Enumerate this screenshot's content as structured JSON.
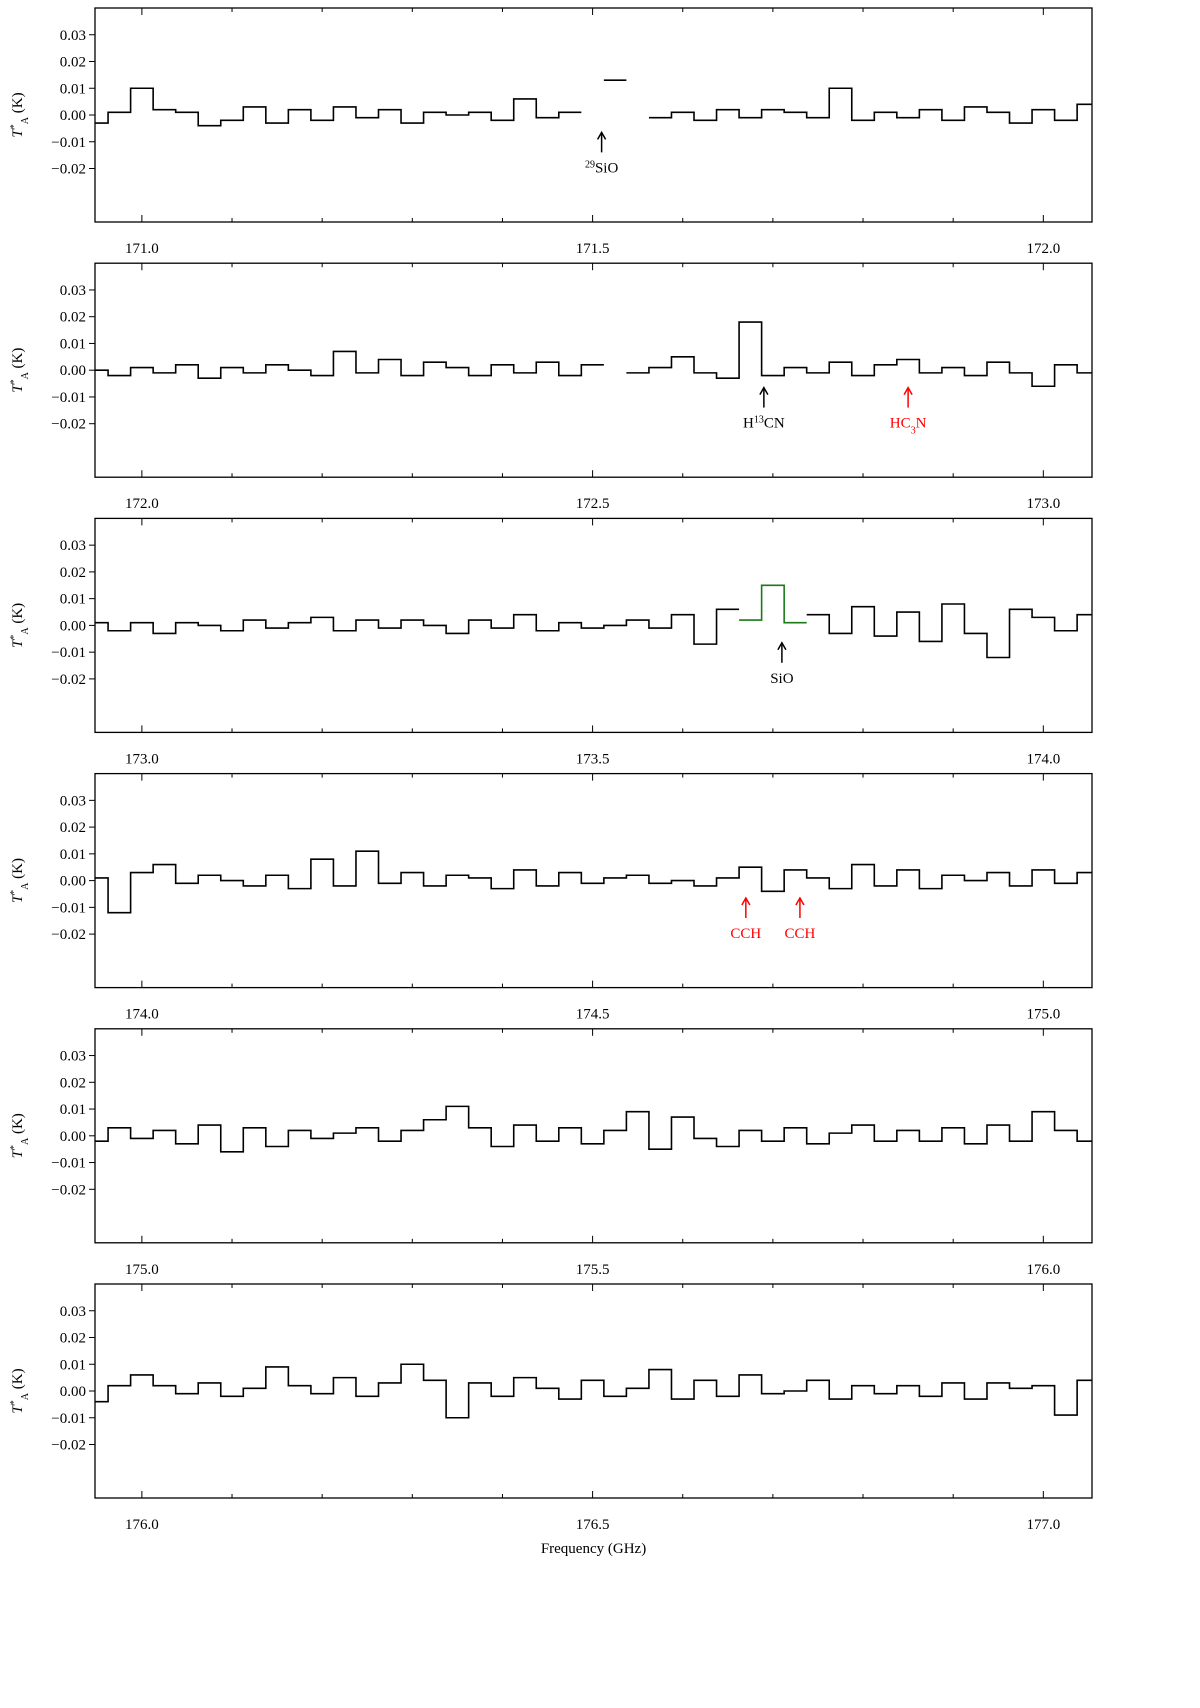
{
  "chart_data": [
    {
      "type": "line",
      "xlim": [
        170.948,
        172.054
      ],
      "ylim": [
        -0.04,
        0.04
      ],
      "x": [
        170.95,
        170.975,
        171.0,
        171.025,
        171.05,
        171.075,
        171.1,
        171.125,
        171.15,
        171.175,
        171.2,
        171.225,
        171.25,
        171.275,
        171.3,
        171.325,
        171.35,
        171.375,
        171.4,
        171.425,
        171.45,
        171.475,
        171.5,
        171.525,
        171.55,
        171.575,
        171.6,
        171.625,
        171.65,
        171.675,
        171.7,
        171.725,
        171.75,
        171.775,
        171.8,
        171.825,
        171.85,
        171.875,
        171.9,
        171.925,
        171.95,
        171.975,
        172.0,
        172.025,
        172.05
      ],
      "series": [
        {
          "color": "#000000",
          "values": [
            -0.003,
            0.001,
            0.01,
            0.002,
            0.001,
            -0.004,
            -0.002,
            0.003,
            -0.003,
            0.002,
            -0.002,
            0.003,
            -0.001,
            0.002,
            -0.003,
            0.001,
            0.0,
            0.001,
            -0.002,
            0.006,
            -0.001,
            0.001,
            null,
            0.013,
            null,
            -0.001,
            0.001,
            -0.002,
            0.002,
            -0.001,
            0.002,
            0.001,
            -0.001,
            0.01,
            -0.002,
            0.001,
            -0.001,
            0.002,
            -0.002,
            0.003,
            0.001,
            -0.003,
            0.002,
            -0.002,
            0.004
          ]
        }
      ],
      "yticks": [
        {
          "value": -0.02,
          "label": "−0.02"
        },
        {
          "value": -0.01,
          "label": "−0.01"
        },
        {
          "value": 0,
          "label": "0.00"
        },
        0.01,
        0.02,
        0.03
      ],
      "xticks": [
        {
          "value": 171,
          "label": "171.0"
        },
        171.5,
        {
          "value": 172,
          "label": "172.0"
        }
      ],
      "xminorticks": [
        171.1,
        171.2,
        171.3,
        171.4,
        171.6,
        171.7,
        171.8,
        171.9
      ],
      "ylabel": [
        {
          "text": "T",
          "style": "italic"
        },
        {
          "text": "*",
          "shift": "super"
        },
        {
          "text": "A",
          "shift": "sub"
        },
        {
          "text": " (K)"
        }
      ],
      "annotations": [
        {
          "x": 171.51,
          "y": -0.005,
          "color": "#000000",
          "parts": [
            {
              "text": "29",
              "shift": "super"
            },
            {
              "text": "SiO"
            }
          ]
        }
      ]
    },
    {
      "type": "line",
      "xlim": [
        171.948,
        173.054
      ],
      "ylim": [
        -0.04,
        0.04
      ],
      "x": [
        171.95,
        171.975,
        172.0,
        172.025,
        172.05,
        172.075,
        172.1,
        172.125,
        172.15,
        172.175,
        172.2,
        172.225,
        172.25,
        172.275,
        172.3,
        172.325,
        172.35,
        172.375,
        172.4,
        172.425,
        172.45,
        172.475,
        172.5,
        172.525,
        172.55,
        172.575,
        172.6,
        172.625,
        172.65,
        172.675,
        172.7,
        172.725,
        172.75,
        172.775,
        172.8,
        172.825,
        172.85,
        172.875,
        172.9,
        172.925,
        172.95,
        172.975,
        173.0,
        173.025,
        173.05
      ],
      "series": [
        {
          "color": "#000000",
          "values": [
            0.0,
            -0.002,
            0.001,
            -0.001,
            0.002,
            -0.003,
            0.001,
            -0.001,
            0.002,
            0.0,
            -0.002,
            0.007,
            -0.001,
            0.004,
            -0.002,
            0.003,
            0.001,
            -0.002,
            0.002,
            -0.001,
            0.003,
            -0.002,
            0.002,
            null,
            -0.001,
            0.001,
            0.005,
            -0.001,
            -0.003,
            0.018,
            -0.002,
            0.001,
            -0.001,
            0.003,
            -0.002,
            0.002,
            0.004,
            -0.001,
            0.001,
            -0.002,
            0.003,
            -0.001,
            -0.006,
            0.002,
            -0.001
          ]
        }
      ],
      "yticks": [
        {
          "value": -0.02,
          "label": "−0.02"
        },
        {
          "value": -0.01,
          "label": "−0.01"
        },
        {
          "value": 0,
          "label": "0.00"
        },
        0.01,
        0.02,
        0.03
      ],
      "xticks": [
        {
          "value": 172,
          "label": "172.0"
        },
        172.5,
        {
          "value": 173,
          "label": "173.0"
        }
      ],
      "xminorticks": [
        172.1,
        172.2,
        172.3,
        172.4,
        172.6,
        172.7,
        172.8,
        172.9
      ],
      "ylabel": [
        {
          "text": "T",
          "style": "italic"
        },
        {
          "text": "*",
          "shift": "super"
        },
        {
          "text": "A",
          "shift": "sub"
        },
        {
          "text": " (K)"
        }
      ],
      "annotations": [
        {
          "x": 172.69,
          "y": -0.005,
          "color": "#000000",
          "parts": [
            {
              "text": "H"
            },
            {
              "text": "13",
              "shift": "super"
            },
            {
              "text": "CN"
            }
          ]
        },
        {
          "x": 172.85,
          "y": -0.005,
          "color": "#ff0000",
          "parts": [
            {
              "text": "HC"
            },
            {
              "text": "3",
              "shift": "sub"
            },
            {
              "text": "N"
            }
          ]
        }
      ]
    },
    {
      "type": "line",
      "xlim": [
        172.948,
        174.054
      ],
      "ylim": [
        -0.04,
        0.04
      ],
      "x": [
        172.95,
        172.975,
        173.0,
        173.025,
        173.05,
        173.075,
        173.1,
        173.125,
        173.15,
        173.175,
        173.2,
        173.225,
        173.25,
        173.275,
        173.3,
        173.325,
        173.35,
        173.375,
        173.4,
        173.425,
        173.45,
        173.475,
        173.5,
        173.525,
        173.55,
        173.575,
        173.6,
        173.625,
        173.65,
        173.675,
        173.7,
        173.725,
        173.75,
        173.775,
        173.8,
        173.825,
        173.85,
        173.875,
        173.9,
        173.925,
        173.95,
        173.975,
        174.0,
        174.025,
        174.05
      ],
      "series": [
        {
          "color": "#000000",
          "values": [
            0.001,
            -0.002,
            0.001,
            -0.003,
            0.001,
            0.0,
            -0.002,
            0.002,
            -0.001,
            0.001,
            0.003,
            -0.002,
            0.002,
            -0.001,
            0.002,
            0.0,
            -0.003,
            0.002,
            -0.001,
            0.004,
            -0.002,
            0.001,
            -0.001,
            0.0,
            0.002,
            -0.001,
            0.004,
            -0.007,
            0.006,
            null,
            null,
            null,
            0.004,
            -0.003,
            0.007,
            -0.004,
            0.005,
            -0.006,
            0.008,
            -0.003,
            -0.012,
            0.006,
            0.003,
            -0.002,
            0.004
          ]
        },
        {
          "color": "#1a7a1a",
          "values": [
            null,
            null,
            null,
            null,
            null,
            null,
            null,
            null,
            null,
            null,
            null,
            null,
            null,
            null,
            null,
            null,
            null,
            null,
            null,
            null,
            null,
            null,
            null,
            null,
            null,
            null,
            null,
            null,
            null,
            0.002,
            0.015,
            0.001,
            null,
            null,
            null,
            null,
            null,
            null,
            null,
            null,
            null,
            null,
            null,
            null,
            null
          ]
        }
      ],
      "yticks": [
        {
          "value": -0.02,
          "label": "−0.02"
        },
        {
          "value": -0.01,
          "label": "−0.01"
        },
        {
          "value": 0,
          "label": "0.00"
        },
        0.01,
        0.02,
        0.03
      ],
      "xticks": [
        {
          "value": 173,
          "label": "173.0"
        },
        173.5,
        {
          "value": 174,
          "label": "174.0"
        }
      ],
      "xminorticks": [
        173.1,
        173.2,
        173.3,
        173.4,
        173.6,
        173.7,
        173.8,
        173.9
      ],
      "ylabel": [
        {
          "text": "T",
          "style": "italic"
        },
        {
          "text": "*",
          "shift": "super"
        },
        {
          "text": "A",
          "shift": "sub"
        },
        {
          "text": " (K)"
        }
      ],
      "annotations": [
        {
          "x": 173.71,
          "y": -0.005,
          "color": "#000000",
          "parts": [
            {
              "text": "SiO"
            }
          ]
        }
      ]
    },
    {
      "type": "line",
      "xlim": [
        173.948,
        175.054
      ],
      "ylim": [
        -0.04,
        0.04
      ],
      "x": [
        173.95,
        173.975,
        174.0,
        174.025,
        174.05,
        174.075,
        174.1,
        174.125,
        174.15,
        174.175,
        174.2,
        174.225,
        174.25,
        174.275,
        174.3,
        174.325,
        174.35,
        174.375,
        174.4,
        174.425,
        174.45,
        174.475,
        174.5,
        174.525,
        174.55,
        174.575,
        174.6,
        174.625,
        174.65,
        174.675,
        174.7,
        174.725,
        174.75,
        174.775,
        174.8,
        174.825,
        174.85,
        174.875,
        174.9,
        174.925,
        174.95,
        174.975,
        175.0,
        175.025,
        175.05
      ],
      "series": [
        {
          "color": "#000000",
          "values": [
            0.001,
            -0.012,
            0.003,
            0.006,
            -0.001,
            0.002,
            0.0,
            -0.002,
            0.002,
            -0.003,
            0.008,
            -0.002,
            0.011,
            -0.001,
            0.003,
            -0.002,
            0.002,
            0.001,
            -0.003,
            0.004,
            -0.002,
            0.003,
            -0.001,
            0.001,
            0.002,
            -0.001,
            0.0,
            -0.002,
            0.001,
            0.005,
            -0.004,
            0.004,
            0.001,
            -0.003,
            0.006,
            -0.002,
            0.004,
            -0.003,
            0.002,
            0.0,
            0.003,
            -0.002,
            0.004,
            -0.001,
            0.003
          ]
        }
      ],
      "yticks": [
        {
          "value": -0.02,
          "label": "−0.02"
        },
        {
          "value": -0.01,
          "label": "−0.01"
        },
        {
          "value": 0,
          "label": "0.00"
        },
        0.01,
        0.02,
        0.03
      ],
      "xticks": [
        {
          "value": 174,
          "label": "174.0"
        },
        174.5,
        {
          "value": 175,
          "label": "175.0"
        }
      ],
      "xminorticks": [
        174.1,
        174.2,
        174.3,
        174.4,
        174.6,
        174.7,
        174.8,
        174.9
      ],
      "ylabel": [
        {
          "text": "T",
          "style": "italic"
        },
        {
          "text": "*",
          "shift": "super"
        },
        {
          "text": "A",
          "shift": "sub"
        },
        {
          "text": " (K)"
        }
      ],
      "annotations": [
        {
          "x": 174.67,
          "y": -0.005,
          "color": "#ff0000",
          "parts": [
            {
              "text": "CCH"
            }
          ]
        },
        {
          "x": 174.73,
          "y": -0.005,
          "color": "#ff0000",
          "parts": [
            {
              "text": "CCH"
            }
          ]
        }
      ]
    },
    {
      "type": "line",
      "xlim": [
        174.948,
        176.054
      ],
      "ylim": [
        -0.04,
        0.04
      ],
      "x": [
        174.95,
        174.975,
        175.0,
        175.025,
        175.05,
        175.075,
        175.1,
        175.125,
        175.15,
        175.175,
        175.2,
        175.225,
        175.25,
        175.275,
        175.3,
        175.325,
        175.35,
        175.375,
        175.4,
        175.425,
        175.45,
        175.475,
        175.5,
        175.525,
        175.55,
        175.575,
        175.6,
        175.625,
        175.65,
        175.675,
        175.7,
        175.725,
        175.75,
        175.775,
        175.8,
        175.825,
        175.85,
        175.875,
        175.9,
        175.925,
        175.95,
        175.975,
        176.0,
        176.025,
        176.05
      ],
      "series": [
        {
          "color": "#000000",
          "values": [
            -0.002,
            0.003,
            -0.001,
            0.002,
            -0.003,
            0.004,
            -0.006,
            0.003,
            -0.004,
            0.002,
            -0.001,
            0.001,
            0.003,
            -0.002,
            0.002,
            0.006,
            0.011,
            0.003,
            -0.004,
            0.004,
            -0.002,
            0.003,
            -0.003,
            0.002,
            0.009,
            -0.005,
            0.007,
            -0.001,
            -0.004,
            0.002,
            -0.002,
            0.003,
            -0.003,
            0.001,
            0.004,
            -0.002,
            0.002,
            -0.002,
            0.003,
            -0.003,
            0.004,
            -0.002,
            0.009,
            0.002,
            -0.002
          ]
        }
      ],
      "yticks": [
        {
          "value": -0.02,
          "label": "−0.02"
        },
        {
          "value": -0.01,
          "label": "−0.01"
        },
        {
          "value": 0,
          "label": "0.00"
        },
        0.01,
        0.02,
        0.03
      ],
      "xticks": [
        {
          "value": 175,
          "label": "175.0"
        },
        175.5,
        {
          "value": 176,
          "label": "176.0"
        }
      ],
      "xminorticks": [
        175.1,
        175.2,
        175.3,
        175.4,
        175.6,
        175.7,
        175.8,
        175.9
      ],
      "ylabel": [
        {
          "text": "T",
          "style": "italic"
        },
        {
          "text": "*",
          "shift": "super"
        },
        {
          "text": "A",
          "shift": "sub"
        },
        {
          "text": " (K)"
        }
      ],
      "annotations": []
    },
    {
      "type": "line",
      "xlim": [
        175.948,
        177.054
      ],
      "ylim": [
        -0.04,
        0.04
      ],
      "x": [
        175.95,
        175.975,
        176.0,
        176.025,
        176.05,
        176.075,
        176.1,
        176.125,
        176.15,
        176.175,
        176.2,
        176.225,
        176.25,
        176.275,
        176.3,
        176.325,
        176.35,
        176.375,
        176.4,
        176.425,
        176.45,
        176.475,
        176.5,
        176.525,
        176.55,
        176.575,
        176.6,
        176.625,
        176.65,
        176.675,
        176.7,
        176.725,
        176.75,
        176.775,
        176.8,
        176.825,
        176.85,
        176.875,
        176.9,
        176.925,
        176.95,
        176.975,
        177.0,
        177.025,
        177.05
      ],
      "series": [
        {
          "color": "#000000",
          "values": [
            -0.004,
            0.002,
            0.006,
            0.002,
            -0.001,
            0.003,
            -0.002,
            0.001,
            0.009,
            0.002,
            -0.001,
            0.005,
            -0.002,
            0.003,
            0.01,
            0.004,
            -0.01,
            0.003,
            -0.002,
            0.005,
            0.001,
            -0.003,
            0.004,
            -0.002,
            0.001,
            0.008,
            -0.003,
            0.004,
            -0.002,
            0.006,
            -0.001,
            0.0,
            0.004,
            -0.003,
            0.002,
            -0.001,
            0.002,
            -0.002,
            0.003,
            -0.003,
            0.003,
            0.001,
            0.002,
            -0.009,
            0.004
          ]
        }
      ],
      "yticks": [
        {
          "value": -0.02,
          "label": "−0.02"
        },
        {
          "value": -0.01,
          "label": "−0.01"
        },
        {
          "value": 0,
          "label": "0.00"
        },
        0.01,
        0.02,
        0.03
      ],
      "xticks": [
        {
          "value": 176,
          "label": "176.0"
        },
        176.5,
        {
          "value": 177,
          "label": "177.0"
        }
      ],
      "xminorticks": [
        176.1,
        176.2,
        176.3,
        176.4,
        176.6,
        176.7,
        176.8,
        176.9
      ],
      "ylabel": [
        {
          "text": "T",
          "style": "italic"
        },
        {
          "text": "*",
          "shift": "super"
        },
        {
          "text": "A",
          "shift": "sub"
        },
        {
          "text": " (K)"
        }
      ],
      "xlabel": "Frequency (GHz)",
      "annotations": []
    }
  ]
}
